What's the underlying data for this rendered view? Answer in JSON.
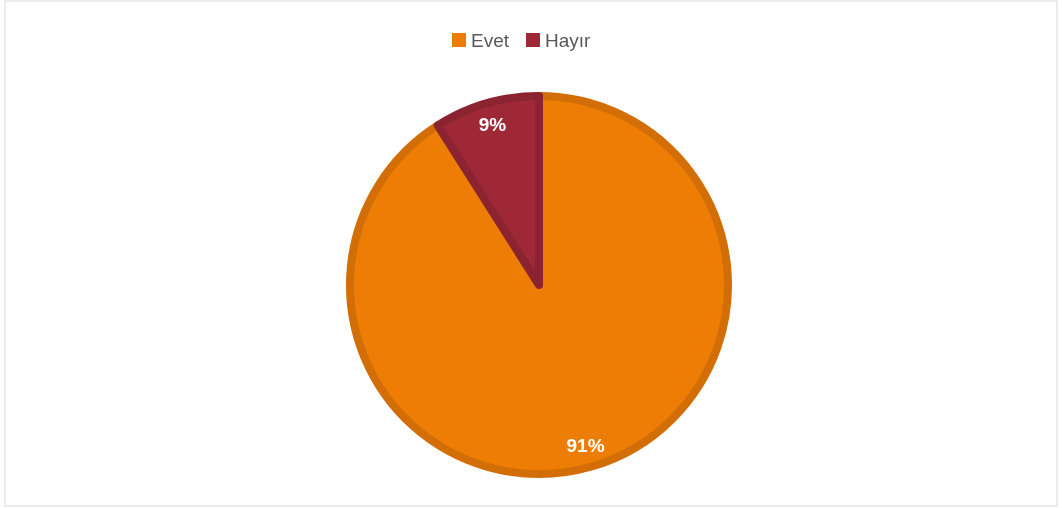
{
  "chart_data": {
    "type": "pie",
    "categories": [
      "Evet",
      "Hayır"
    ],
    "values": [
      91,
      9
    ],
    "colors": [
      "#ee7d06",
      "#9e2836"
    ],
    "value_labels": [
      "91%",
      "9%"
    ],
    "legend": "top"
  }
}
